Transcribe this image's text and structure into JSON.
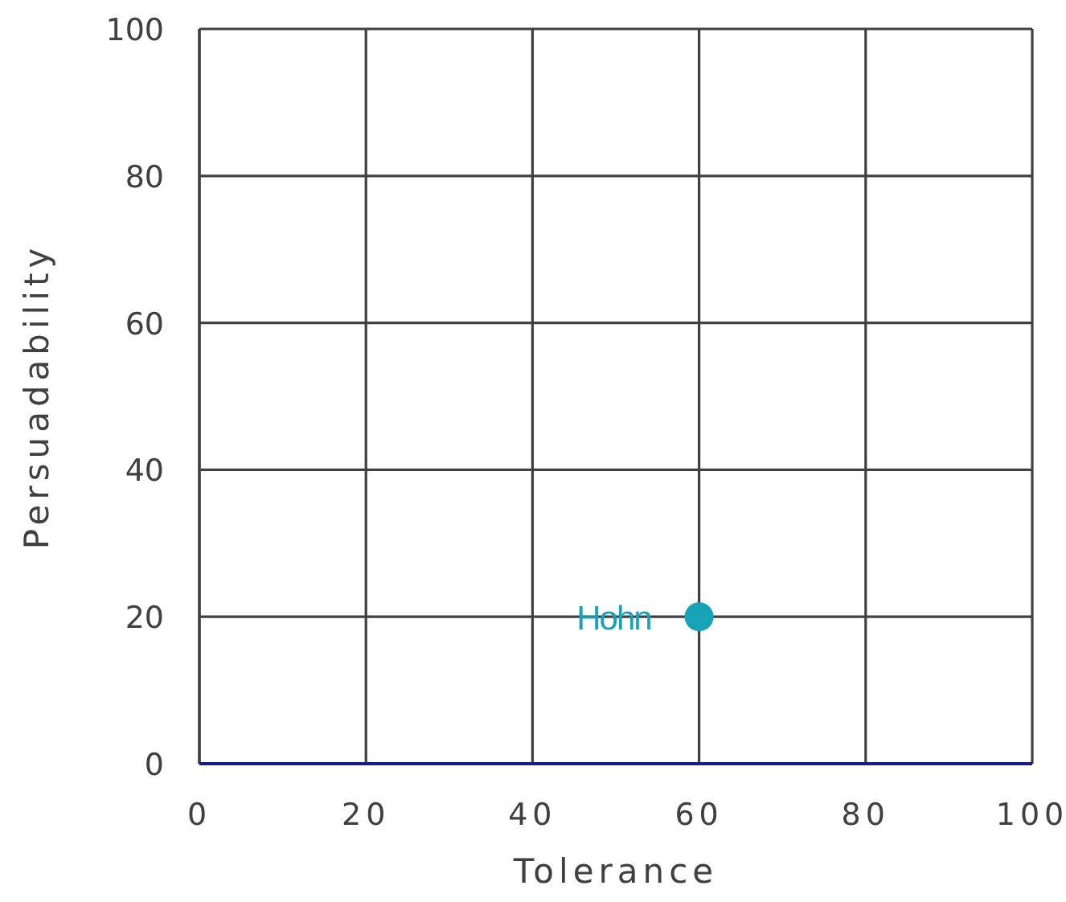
{
  "chart_data": {
    "type": "scatter",
    "xlabel": "Tolerance",
    "ylabel": "Persuadability",
    "x": [
      60
    ],
    "series": [
      {
        "name": "Hohn",
        "color": "#17a2b8",
        "values": [
          20
        ]
      }
    ],
    "xlim": [
      0,
      100
    ],
    "ylim": [
      0,
      100
    ],
    "xticks": [
      0,
      20,
      40,
      60,
      80,
      100
    ],
    "yticks": [
      0,
      20,
      40,
      60,
      80,
      100
    ],
    "grid": true,
    "marker": "circle",
    "legend": false
  }
}
